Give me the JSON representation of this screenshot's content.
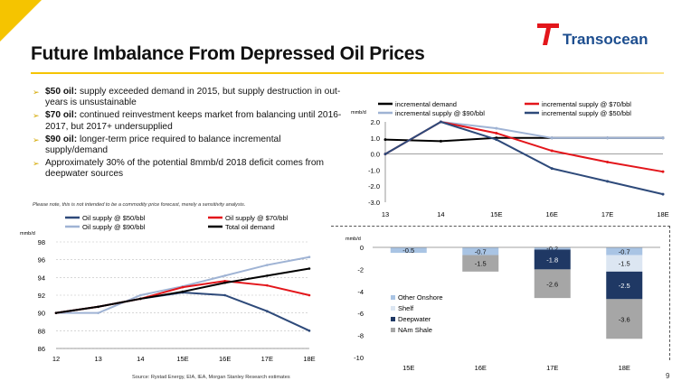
{
  "title": "Future Imbalance From Depressed Oil Prices",
  "logo_text": "Transocean",
  "bullets": [
    {
      "bold": "$50 oil:",
      "text": " supply exceeded demand in 2015, but supply destruction in out-years is unsustainable"
    },
    {
      "bold": "$70 oil:",
      "text": " continued reinvestment keeps market from balancing until 2016-2017, but 2017+ undersupplied"
    },
    {
      "bold": "$90 oil:",
      "text": " longer-term price required to balance incremental supply/demand"
    },
    {
      "bold": "",
      "text": "Approximately 30% of the potential 8mmb/d 2018 deficit comes from deepwater sources"
    }
  ],
  "note": "Please note, this is not intended to be a commodity price forecast, merely a sensitivity analysis.",
  "source": "Source: Rystad Energy, EIA, IEA, Morgan Stanley Research estimates",
  "page_number": "9",
  "colors": {
    "accent": "#f5c400",
    "blue_dark": "#2e4a7a",
    "blue_light": "#9fb3d4",
    "red": "#e3161b",
    "black": "#000000",
    "grey": "#a6a6a6",
    "brand": "#1d4e8f"
  },
  "chart_data": [
    {
      "type": "line",
      "ylabel": "mmb/d",
      "ylim": [
        86,
        98
      ],
      "yticks": [
        86,
        88,
        90,
        92,
        94,
        96,
        98
      ],
      "grid": true,
      "legend_position": "top",
      "categories": [
        "12",
        "13",
        "14",
        "15E",
        "16E",
        "17E",
        "18E"
      ],
      "series": [
        {
          "name": "Oil supply @ $50/bbl",
          "color": "#2e4a7a",
          "values": [
            90.0,
            90.7,
            91.6,
            92.3,
            92.0,
            90.2,
            88.0
          ]
        },
        {
          "name": "Oil supply @ $90/bbl",
          "color": "#9fb3d4",
          "values": [
            90.0,
            90.0,
            92.0,
            93.0,
            94.2,
            95.4,
            96.3
          ]
        },
        {
          "name": "Oil supply @ $70/bbl",
          "color": "#e3161b",
          "values": [
            90.0,
            90.7,
            91.6,
            92.9,
            93.6,
            93.1,
            92.0
          ]
        },
        {
          "name": "Total oil demand",
          "color": "#000000",
          "values": [
            90.0,
            90.7,
            91.6,
            92.4,
            93.4,
            94.2,
            95.0
          ]
        }
      ]
    },
    {
      "type": "line",
      "ylabel": "mmb/d",
      "ylim": [
        -3.0,
        2.0
      ],
      "yticks": [
        "-3.0",
        "-2.5",
        "-2.0",
        "-1.5",
        "-1.0",
        "-0.5",
        "0.0",
        "0.5",
        "1.0",
        "1.5",
        "2.0"
      ],
      "grid": false,
      "legend_position": "top",
      "categories": [
        "13",
        "14",
        "15E",
        "16E",
        "17E",
        "18E"
      ],
      "series": [
        {
          "name": "incremental demand",
          "color": "#000000",
          "values": [
            0.9,
            0.8,
            1.0,
            1.0,
            1.0,
            1.0
          ]
        },
        {
          "name": "incremental supply @ $90/bbl",
          "color": "#9fb3d4",
          "values": [
            0.0,
            2.0,
            1.6,
            1.0,
            1.0,
            1.0
          ]
        },
        {
          "name": "incremental supply @ $70/bbl",
          "color": "#e3161b",
          "values": [
            0.0,
            2.0,
            1.3,
            0.2,
            -0.5,
            -1.1
          ]
        },
        {
          "name": "incremental supply @ $50/bbl",
          "color": "#2e4a7a",
          "values": [
            0.0,
            2.0,
            0.9,
            -0.9,
            -1.7,
            -2.5
          ]
        }
      ]
    },
    {
      "type": "bar",
      "stacked": true,
      "ylabel": "mmb/d",
      "ylim": [
        -10,
        0
      ],
      "yticks": [
        "0",
        "-2",
        "-4",
        "-6",
        "-8",
        "-10"
      ],
      "grid": false,
      "legend_position": "bottom-left",
      "categories": [
        "15E",
        "16E",
        "17E",
        "18E"
      ],
      "series": [
        {
          "name": "Other Onshore",
          "color": "#a9c4e4",
          "values": [
            -0.5,
            -0.7,
            -0.2,
            -0.7
          ],
          "labels": [
            "-0.5",
            "-0.7",
            "-0.2",
            "-0.7"
          ]
        },
        {
          "name": "Shelf",
          "color": "#dce6f2",
          "values": [
            0,
            0,
            0,
            -1.5
          ],
          "labels": [
            "",
            "",
            "",
            "-1.5"
          ]
        },
        {
          "name": "Deepwater",
          "color": "#1f3864",
          "values": [
            0,
            0,
            -1.8,
            -2.5
          ],
          "labels": [
            "",
            "",
            "-1.8",
            "-2.5"
          ]
        },
        {
          "name": "NAm Shale",
          "color": "#a6a6a6",
          "values": [
            0,
            -1.5,
            -2.6,
            -3.6
          ],
          "labels": [
            "",
            "-1.5",
            "-2.6",
            "-3.6"
          ]
        }
      ]
    }
  ]
}
